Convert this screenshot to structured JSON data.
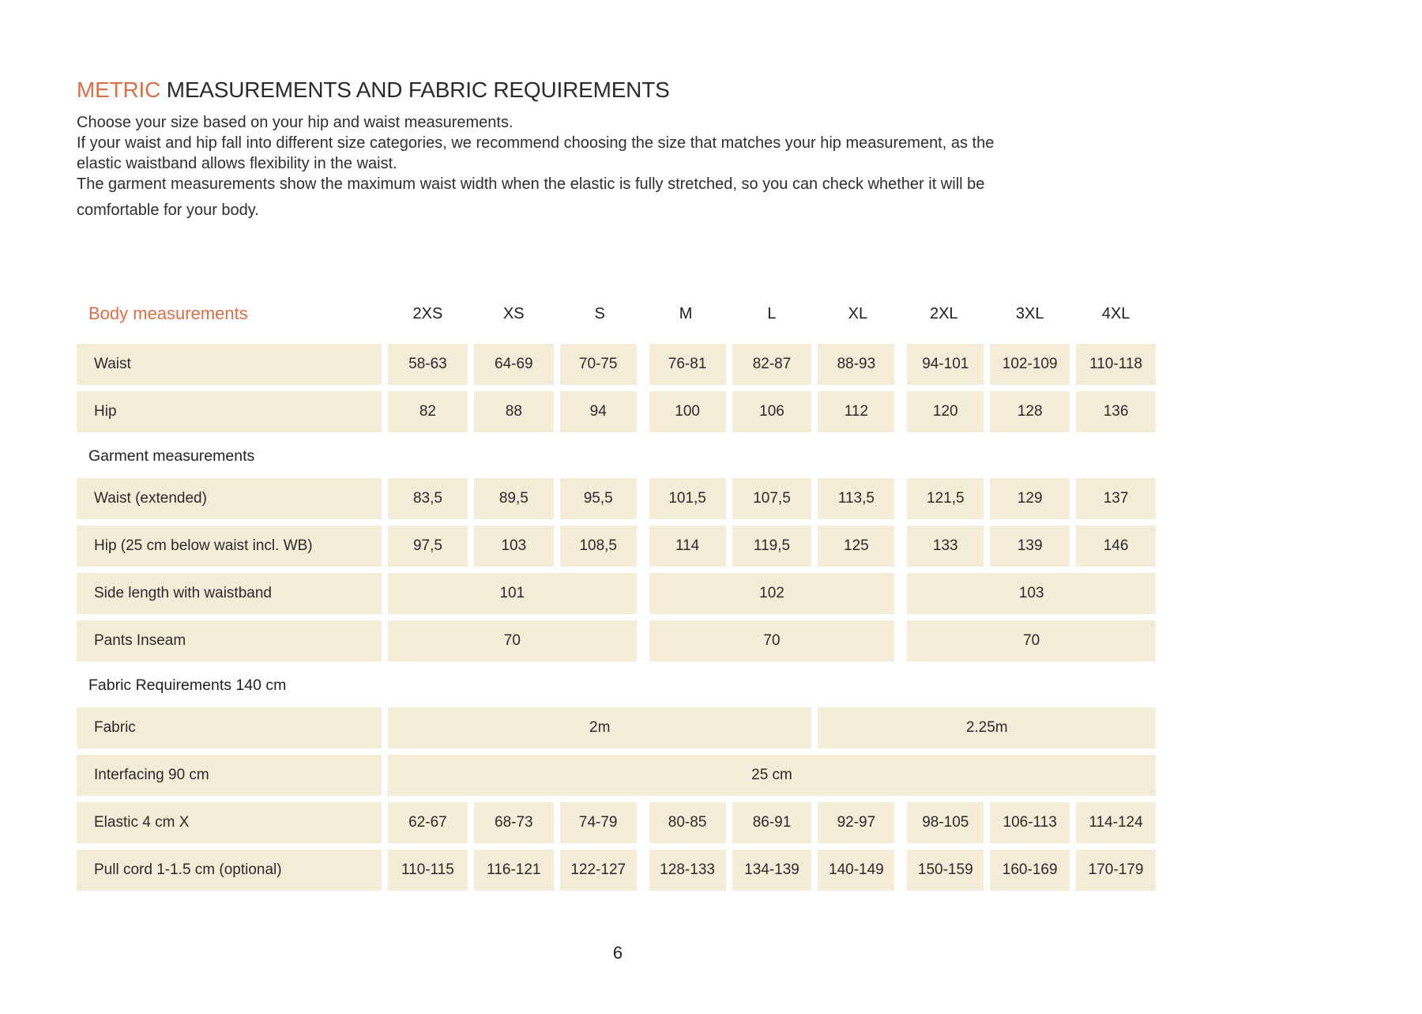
{
  "page": {
    "title_accent": "METRIC",
    "title_rest": " MEASUREMENTS AND FABRIC REQUIREMENTS",
    "intro_lines": [
      "Choose your size based on your hip and waist measurements.",
      "If your waist and hip fall into different size categories, we recommend choosing the size that matches your hip measurement, as the",
      "elastic waistband allows flexibility in the waist.",
      "The garment measurements show the maximum waist width when the elastic is fully stretched, so you can check whether it will be",
      "comfortable for your body."
    ],
    "page_number": "6"
  },
  "colors": {
    "accent_orange": "#d96f47",
    "cell_background": "#f5ecd8",
    "text": "#2d2d2d"
  },
  "size_table": {
    "header_label": "Body measurements",
    "sizes": [
      "2XS",
      "XS",
      "S",
      "M",
      "L",
      "XL",
      "2XL",
      "3XL",
      "4XL"
    ],
    "rows": [
      {
        "type": "data",
        "label": "Waist",
        "cells": [
          {
            "span": 1,
            "value": "58-63"
          },
          {
            "span": 1,
            "value": "64-69"
          },
          {
            "span": 1,
            "value": "70-75"
          },
          {
            "span": 1,
            "value": "76-81"
          },
          {
            "span": 1,
            "value": "82-87"
          },
          {
            "span": 1,
            "value": "88-93"
          },
          {
            "span": 1,
            "value": "94-101"
          },
          {
            "span": 1,
            "value": "102-109"
          },
          {
            "span": 1,
            "value": "110-118"
          }
        ]
      },
      {
        "type": "data",
        "label": "Hip",
        "cells": [
          {
            "span": 1,
            "value": "82"
          },
          {
            "span": 1,
            "value": "88"
          },
          {
            "span": 1,
            "value": "94"
          },
          {
            "span": 1,
            "value": "100"
          },
          {
            "span": 1,
            "value": "106"
          },
          {
            "span": 1,
            "value": "112"
          },
          {
            "span": 1,
            "value": "120"
          },
          {
            "span": 1,
            "value": "128"
          },
          {
            "span": 1,
            "value": "136"
          }
        ]
      },
      {
        "type": "section",
        "label": "Garment measurements"
      },
      {
        "type": "data",
        "label": "Waist (extended)",
        "cells": [
          {
            "span": 1,
            "value": "83,5"
          },
          {
            "span": 1,
            "value": "89,5"
          },
          {
            "span": 1,
            "value": "95,5"
          },
          {
            "span": 1,
            "value": "101,5"
          },
          {
            "span": 1,
            "value": "107,5"
          },
          {
            "span": 1,
            "value": "113,5"
          },
          {
            "span": 1,
            "value": "121,5"
          },
          {
            "span": 1,
            "value": "129"
          },
          {
            "span": 1,
            "value": "137"
          }
        ]
      },
      {
        "type": "data",
        "label": "Hip (25 cm below waist incl. WB)",
        "cells": [
          {
            "span": 1,
            "value": "97,5"
          },
          {
            "span": 1,
            "value": "103"
          },
          {
            "span": 1,
            "value": "108,5"
          },
          {
            "span": 1,
            "value": "114"
          },
          {
            "span": 1,
            "value": "119,5"
          },
          {
            "span": 1,
            "value": "125"
          },
          {
            "span": 1,
            "value": "133"
          },
          {
            "span": 1,
            "value": "139"
          },
          {
            "span": 1,
            "value": "146"
          }
        ]
      },
      {
        "type": "data",
        "label": "Side length with waistband",
        "cells": [
          {
            "span": 3,
            "value": "101"
          },
          {
            "span": 3,
            "value": "102"
          },
          {
            "span": 3,
            "value": "103"
          }
        ]
      },
      {
        "type": "data",
        "label": "Pants Inseam",
        "cells": [
          {
            "span": 3,
            "value": "70"
          },
          {
            "span": 3,
            "value": "70"
          },
          {
            "span": 3,
            "value": "70"
          }
        ]
      },
      {
        "type": "section",
        "label": "Fabric Requirements 140 cm"
      },
      {
        "type": "data",
        "label": "Fabric",
        "cells": [
          {
            "span": 5,
            "value": "2m"
          },
          {
            "span": 4,
            "value": "2.25m"
          }
        ]
      },
      {
        "type": "data",
        "label": "Interfacing 90 cm",
        "cells": [
          {
            "span": 9,
            "value": "25 cm"
          }
        ]
      },
      {
        "type": "data",
        "label": "Elastic 4 cm X",
        "cells": [
          {
            "span": 1,
            "value": "62-67"
          },
          {
            "span": 1,
            "value": "68-73"
          },
          {
            "span": 1,
            "value": "74-79"
          },
          {
            "span": 1,
            "value": "80-85"
          },
          {
            "span": 1,
            "value": "86-91"
          },
          {
            "span": 1,
            "value": "92-97"
          },
          {
            "span": 1,
            "value": "98-105"
          },
          {
            "span": 1,
            "value": "106-113"
          },
          {
            "span": 1,
            "value": "114-124"
          }
        ]
      },
      {
        "type": "data",
        "label": "Pull cord 1-1.5 cm (optional)",
        "cells": [
          {
            "span": 1,
            "value": "110-115"
          },
          {
            "span": 1,
            "value": "116-121"
          },
          {
            "span": 1,
            "value": "122-127"
          },
          {
            "span": 1,
            "value": "128-133"
          },
          {
            "span": 1,
            "value": "134-139"
          },
          {
            "span": 1,
            "value": "140-149"
          },
          {
            "span": 1,
            "value": "150-159"
          },
          {
            "span": 1,
            "value": "160-169"
          },
          {
            "span": 1,
            "value": "170-179"
          }
        ]
      }
    ]
  }
}
